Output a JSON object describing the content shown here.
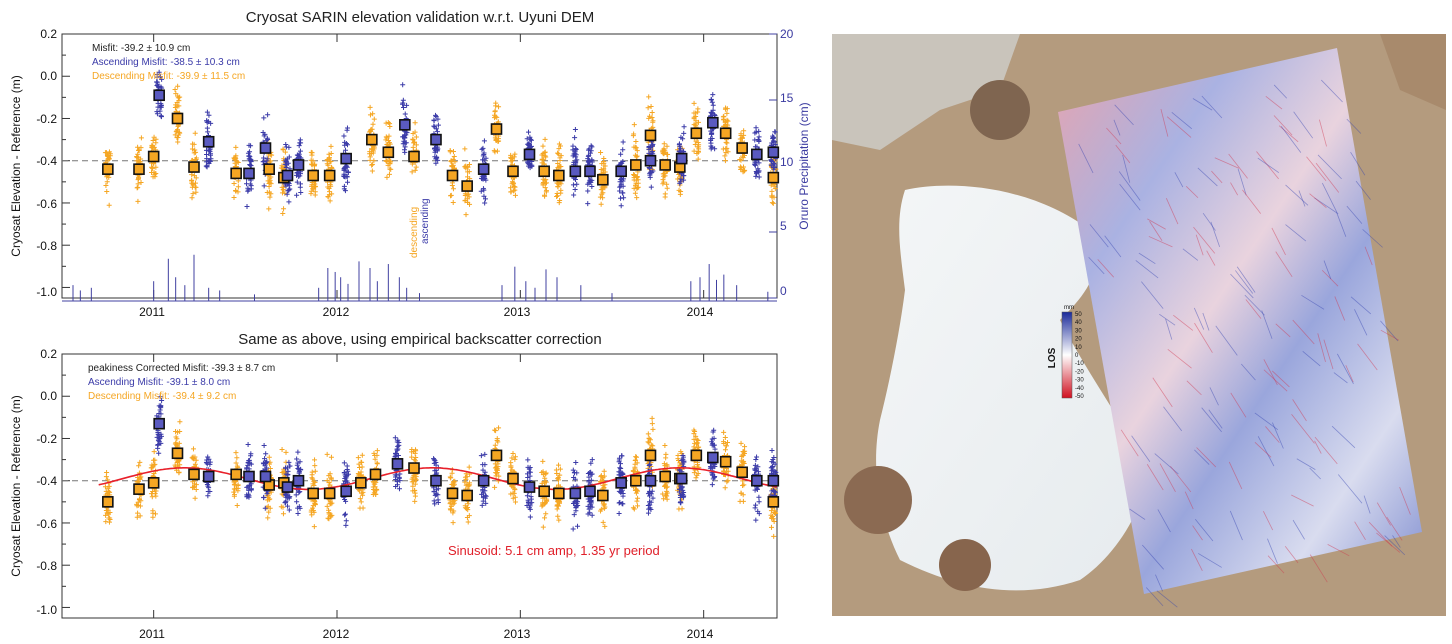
{
  "colors": {
    "descending": "#f5a623",
    "ascending": "#3b3ba8",
    "fit": "#e8202a",
    "precip": "#4040a0",
    "frame": "#333333"
  },
  "chart_data": [
    {
      "type": "scatter",
      "title": "Cryosat SARIN elevation validation w.r.t. Uyuni DEM",
      "ylabel": "Cryosat Elevation - Reference (m)",
      "y2label": "Oruro Precipitation (cm)",
      "ylim": [
        -1.05,
        0.2
      ],
      "y2lim": [
        0,
        20
      ],
      "xlim": [
        2010.5,
        2014.4
      ],
      "xticks": [
        "2011",
        "2012",
        "2013",
        "2014"
      ],
      "yticks": [
        "0.2",
        "0.0",
        "-0.2",
        "-0.4",
        "-0.6",
        "-0.8",
        "-1.0"
      ],
      "y2ticks": [
        "20",
        "15",
        "10",
        "5",
        "0"
      ],
      "reference_line": -0.4,
      "annotations": {
        "misfit": "Misfit: -39.2 ± 10.9 cm",
        "asc_misfit": "Ascending Misfit: -38.5 ± 10.3 cm",
        "desc_misfit": "Descending Misfit: -39.9 ± 11.5 cm",
        "desc_label": "descending",
        "asc_label": "ascending"
      },
      "series": [
        {
          "name": "descending",
          "color": "#f5a623",
          "x": [
            2010.75,
            2010.92,
            2011.0,
            2011.13,
            2011.22,
            2011.45,
            2011.63,
            2011.71,
            2011.87,
            2011.96,
            2012.19,
            2012.28,
            2012.42,
            2012.63,
            2012.71,
            2012.87,
            2012.96,
            2013.13,
            2013.21,
            2013.45,
            2013.63,
            2013.71,
            2013.79,
            2013.87,
            2013.96,
            2014.12,
            2014.21,
            2014.38
          ],
          "y": [
            -0.44,
            -0.44,
            -0.38,
            -0.2,
            -0.43,
            -0.46,
            -0.44,
            -0.48,
            -0.47,
            -0.47,
            -0.3,
            -0.36,
            -0.38,
            -0.47,
            -0.52,
            -0.25,
            -0.45,
            -0.45,
            -0.47,
            -0.49,
            -0.42,
            -0.28,
            -0.42,
            -0.43,
            -0.27,
            -0.27,
            -0.34,
            -0.48
          ]
        },
        {
          "name": "ascending",
          "color": "#3b3ba8",
          "x": [
            2011.03,
            2011.3,
            2011.52,
            2011.61,
            2011.73,
            2011.79,
            2012.05,
            2012.37,
            2012.54,
            2012.8,
            2013.05,
            2013.3,
            2013.38,
            2013.55,
            2013.71,
            2013.88,
            2014.05,
            2014.29,
            2014.38
          ],
          "y": [
            -0.09,
            -0.31,
            -0.46,
            -0.34,
            -0.47,
            -0.42,
            -0.39,
            -0.23,
            -0.3,
            -0.44,
            -0.37,
            -0.45,
            -0.45,
            -0.45,
            -0.4,
            -0.39,
            -0.22,
            -0.37,
            -0.36
          ]
        }
      ],
      "precip": {
        "name": "Oruro Precipitation",
        "x": [
          2010.56,
          2010.6,
          2010.66,
          2011.0,
          2011.08,
          2011.12,
          2011.17,
          2011.22,
          2011.3,
          2011.36,
          2011.55,
          2011.9,
          2011.95,
          2011.99,
          2012.02,
          2012.06,
          2012.12,
          2012.18,
          2012.22,
          2012.28,
          2012.34,
          2012.38,
          2012.45,
          2012.9,
          2012.97,
          2013.03,
          2013.08,
          2013.14,
          2013.2,
          2013.33,
          2013.5,
          2013.93,
          2013.98,
          2014.03,
          2014.07,
          2014.11,
          2014.18,
          2014.35
        ],
        "y": [
          1.2,
          0.8,
          1.0,
          1.5,
          3.2,
          1.8,
          1.2,
          3.5,
          1.0,
          0.8,
          0.5,
          1.0,
          2.5,
          2.2,
          1.8,
          1.3,
          3.0,
          2.5,
          1.5,
          2.8,
          1.8,
          1.0,
          0.6,
          1.2,
          2.6,
          1.5,
          1.0,
          2.4,
          1.8,
          1.2,
          0.6,
          1.5,
          1.8,
          2.8,
          1.6,
          2.0,
          1.2,
          0.7
        ]
      }
    },
    {
      "type": "scatter",
      "title": "Same as above, using empirical backscatter correction",
      "ylabel": "Cryosat Elevation - Reference (m)",
      "ylim": [
        -1.05,
        0.2
      ],
      "xlim": [
        2010.5,
        2014.4
      ],
      "xticks": [
        "2011",
        "2012",
        "2013",
        "2014"
      ],
      "yticks": [
        "0.2",
        "0.0",
        "-0.2",
        "-0.4",
        "-0.6",
        "-0.8",
        "-1.0"
      ],
      "reference_line": -0.4,
      "annotations": {
        "misfit": "peakiness Corrected Misfit: -39.3 ± 8.7 cm",
        "asc_misfit": "Ascending Misfit: -39.1 ± 8.0 cm",
        "desc_misfit": "Descending Misfit: -39.4 ± 9.2 cm",
        "sinusoid": "Sinusoid:   5.1 cm amp, 1.35 yr period"
      },
      "sinusoid": {
        "mean": -0.39,
        "amplitude": 0.051,
        "period": 1.35,
        "phase_ref": 2011.17
      },
      "series": [
        {
          "name": "descending",
          "color": "#f5a623",
          "x": [
            2010.75,
            2010.92,
            2011.0,
            2011.13,
            2011.22,
            2011.45,
            2011.63,
            2011.71,
            2011.87,
            2011.96,
            2012.13,
            2012.21,
            2012.42,
            2012.63,
            2012.71,
            2012.87,
            2012.96,
            2013.13,
            2013.21,
            2013.45,
            2013.63,
            2013.71,
            2013.79,
            2013.87,
            2013.96,
            2014.12,
            2014.21,
            2014.38
          ],
          "y": [
            -0.5,
            -0.44,
            -0.41,
            -0.27,
            -0.37,
            -0.37,
            -0.42,
            -0.41,
            -0.46,
            -0.46,
            -0.41,
            -0.37,
            -0.34,
            -0.46,
            -0.47,
            -0.28,
            -0.39,
            -0.45,
            -0.46,
            -0.47,
            -0.4,
            -0.28,
            -0.38,
            -0.39,
            -0.28,
            -0.31,
            -0.36,
            -0.5
          ]
        },
        {
          "name": "ascending",
          "color": "#3b3ba8",
          "x": [
            2011.03,
            2011.3,
            2011.52,
            2011.61,
            2011.73,
            2011.79,
            2012.05,
            2012.33,
            2012.54,
            2012.8,
            2013.05,
            2013.3,
            2013.38,
            2013.55,
            2013.71,
            2013.88,
            2014.05,
            2014.29,
            2014.38
          ],
          "y": [
            -0.13,
            -0.38,
            -0.38,
            -0.38,
            -0.43,
            -0.4,
            -0.45,
            -0.32,
            -0.4,
            -0.4,
            -0.43,
            -0.46,
            -0.45,
            -0.41,
            -0.4,
            -0.39,
            -0.29,
            -0.4,
            -0.4
          ]
        }
      ]
    }
  ],
  "map": {
    "colorbar_title": "LOS",
    "colorbar_unit": "mm",
    "colorbar_ticks": [
      "50",
      "40",
      "30",
      "20",
      "10",
      "0",
      "-10",
      "-20",
      "-30",
      "-40",
      "-50"
    ]
  }
}
